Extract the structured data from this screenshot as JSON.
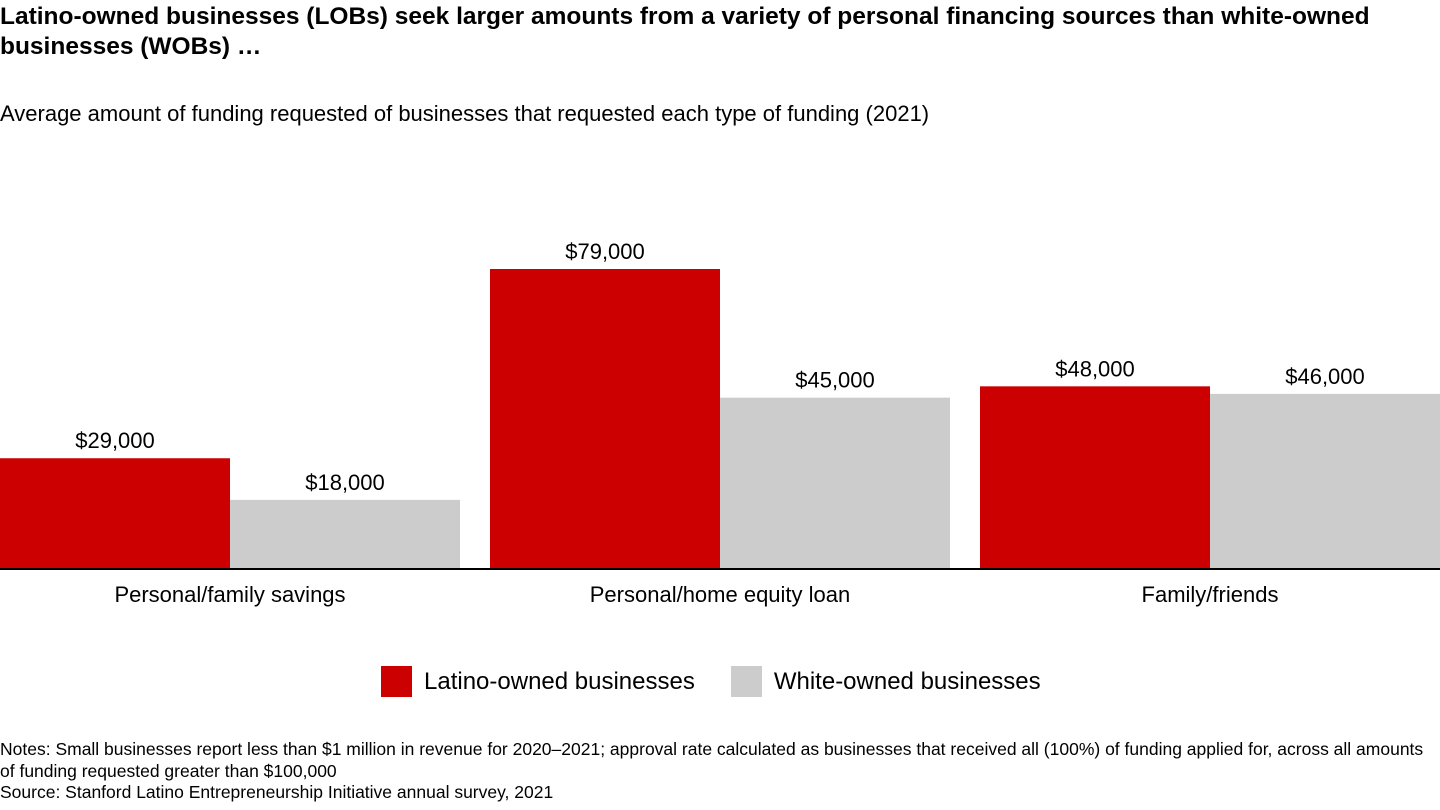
{
  "chart_data": {
    "type": "bar",
    "title": "Latino-owned businesses (LOBs) seek larger amounts from a variety of personal financing sources than white-owned businesses (WOBs) …",
    "subtitle": "Average amount of funding requested of businesses that requested each type of funding (2021)",
    "categories": [
      "Personal/family savings",
      "Personal/home equity loan",
      "Family/friends"
    ],
    "series": [
      {
        "name": "Latino-owned businesses",
        "color": "#cc0000",
        "values": [
          29000,
          79000,
          48000
        ],
        "labels": [
          "$29,000",
          "$79,000",
          "$48,000"
        ]
      },
      {
        "name": "White-owned businesses",
        "color": "#cccccc",
        "values": [
          18000,
          45000,
          46000
        ],
        "labels": [
          "$18,000",
          "$45,000",
          "$46,000"
        ]
      }
    ],
    "ylim": [
      0,
      79000
    ],
    "grid": false,
    "legend_position": "bottom"
  },
  "notes": {
    "line1": "Notes: Small businesses report less than $1 million in revenue for 2020–2021; approval rate calculated as businesses that received all (100%) of funding applied for, across all amounts of funding requested greater than $100,000",
    "source": "Source: Stanford Latino Entrepreneurship Initiative annual survey, 2021"
  }
}
